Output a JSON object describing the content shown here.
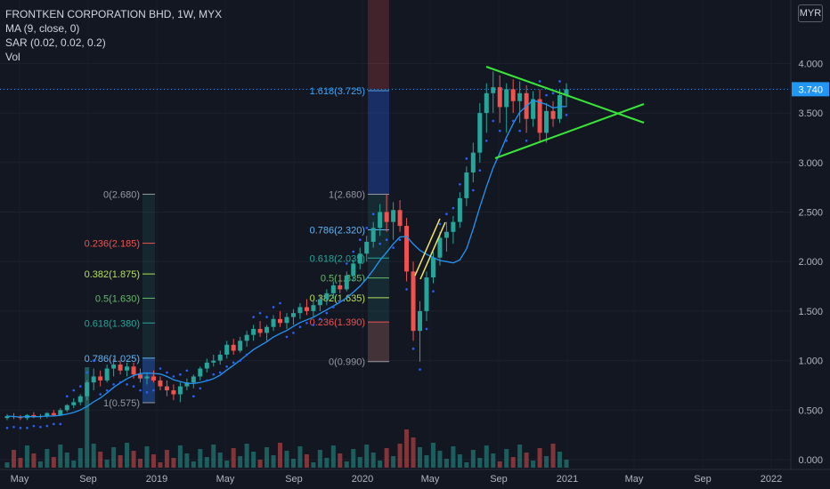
{
  "legend": {
    "symbol": "FRONTKEN CORPORATION BHD, 1W, MYX",
    "ma": "MA (9, close, 0)",
    "sar": "SAR (0.02, 0.02, 0.2)",
    "vol": "Vol"
  },
  "currency_button": "MYR",
  "colors": {
    "background": "#131722",
    "up": "#26a69a",
    "down": "#ef5350",
    "ma": "#2196f3",
    "sar": "#2962ff",
    "triangle": "#39e639",
    "price_label": "#2196f3"
  },
  "price_label": "3.740",
  "chart_data": {
    "type": "candlestick",
    "y_axis": {
      "ticks": [
        "4.000",
        "3.500",
        "3.000",
        "2.500",
        "2.000",
        "1.500",
        "1.000",
        "0.500",
        "0.000"
      ],
      "range": [
        0,
        4.3
      ]
    },
    "x_axis": {
      "ticks": [
        "May",
        "Sep",
        "2019",
        "May",
        "Sep",
        "2020",
        "May",
        "Sep",
        "2021",
        "May",
        "Sep",
        "2022"
      ]
    },
    "current_price": 3.74,
    "ohlc_weekly_approx": [
      [
        0.42,
        0.46,
        0.4,
        0.44
      ],
      [
        0.44,
        0.47,
        0.41,
        0.43
      ],
      [
        0.43,
        0.45,
        0.4,
        0.42
      ],
      [
        0.42,
        0.46,
        0.4,
        0.45
      ],
      [
        0.45,
        0.48,
        0.42,
        0.43
      ],
      [
        0.43,
        0.46,
        0.41,
        0.44
      ],
      [
        0.44,
        0.48,
        0.42,
        0.47
      ],
      [
        0.47,
        0.5,
        0.44,
        0.45
      ],
      [
        0.45,
        0.52,
        0.44,
        0.5
      ],
      [
        0.5,
        0.56,
        0.48,
        0.55
      ],
      [
        0.55,
        0.62,
        0.52,
        0.58
      ],
      [
        0.58,
        0.66,
        0.55,
        0.64
      ],
      [
        0.64,
        0.8,
        0.6,
        0.78
      ],
      [
        0.78,
        0.92,
        0.7,
        0.84
      ],
      [
        0.84,
        0.9,
        0.74,
        0.8
      ],
      [
        0.8,
        0.96,
        0.78,
        0.92
      ],
      [
        0.92,
        1.02,
        0.84,
        0.96
      ],
      [
        0.96,
        1.0,
        0.86,
        0.9
      ],
      [
        0.9,
        0.98,
        0.84,
        0.94
      ],
      [
        0.94,
        0.98,
        0.82,
        0.86
      ],
      [
        0.86,
        0.92,
        0.78,
        0.82
      ],
      [
        0.82,
        0.88,
        0.76,
        0.84
      ],
      [
        0.84,
        0.9,
        0.78,
        0.8
      ],
      [
        0.8,
        0.84,
        0.7,
        0.74
      ],
      [
        0.74,
        0.8,
        0.64,
        0.7
      ],
      [
        0.7,
        0.76,
        0.6,
        0.66
      ],
      [
        0.66,
        0.78,
        0.58,
        0.74
      ],
      [
        0.74,
        0.82,
        0.7,
        0.78
      ],
      [
        0.78,
        0.86,
        0.72,
        0.84
      ],
      [
        0.84,
        0.94,
        0.8,
        0.92
      ],
      [
        0.92,
        1.02,
        0.88,
        0.98
      ],
      [
        0.98,
        1.06,
        0.94,
        1.0
      ],
      [
        1.0,
        1.1,
        0.96,
        1.06
      ],
      [
        1.06,
        1.2,
        1.02,
        1.16
      ],
      [
        1.16,
        1.22,
        1.06,
        1.1
      ],
      [
        1.1,
        1.24,
        1.08,
        1.2
      ],
      [
        1.2,
        1.3,
        1.14,
        1.26
      ],
      [
        1.26,
        1.36,
        1.2,
        1.32
      ],
      [
        1.32,
        1.4,
        1.24,
        1.28
      ],
      [
        1.28,
        1.36,
        1.2,
        1.34
      ],
      [
        1.34,
        1.46,
        1.3,
        1.42
      ],
      [
        1.42,
        1.5,
        1.34,
        1.38
      ],
      [
        1.38,
        1.48,
        1.32,
        1.44
      ],
      [
        1.44,
        1.52,
        1.36,
        1.48
      ],
      [
        1.48,
        1.58,
        1.42,
        1.54
      ],
      [
        1.54,
        1.62,
        1.46,
        1.5
      ],
      [
        1.5,
        1.6,
        1.44,
        1.56
      ],
      [
        1.56,
        1.66,
        1.5,
        1.62
      ],
      [
        1.62,
        1.72,
        1.56,
        1.68
      ],
      [
        1.68,
        1.8,
        1.62,
        1.76
      ],
      [
        1.76,
        1.86,
        1.68,
        1.72
      ],
      [
        1.72,
        1.9,
        1.7,
        1.86
      ],
      [
        1.86,
        2.02,
        1.8,
        1.98
      ],
      [
        1.98,
        2.14,
        1.92,
        2.08
      ],
      [
        2.08,
        2.26,
        2.0,
        2.2
      ],
      [
        2.2,
        2.4,
        2.14,
        2.34
      ],
      [
        2.34,
        2.58,
        2.26,
        2.5
      ],
      [
        2.5,
        2.68,
        2.3,
        2.4
      ],
      [
        2.4,
        2.6,
        2.22,
        2.52
      ],
      [
        2.52,
        2.62,
        2.3,
        2.36
      ],
      [
        2.36,
        2.44,
        1.8,
        1.9
      ],
      [
        1.9,
        2.0,
        1.2,
        1.3
      ],
      [
        1.3,
        1.6,
        0.99,
        1.5
      ],
      [
        1.5,
        1.9,
        1.4,
        1.84
      ],
      [
        1.84,
        2.1,
        1.78,
        2.04
      ],
      [
        2.04,
        2.3,
        1.96,
        2.24
      ],
      [
        2.24,
        2.4,
        2.1,
        2.3
      ],
      [
        2.3,
        2.46,
        2.18,
        2.4
      ],
      [
        2.4,
        2.7,
        2.34,
        2.64
      ],
      [
        2.64,
        2.96,
        2.56,
        2.9
      ],
      [
        2.9,
        3.2,
        2.8,
        3.1
      ],
      [
        3.1,
        3.6,
        3.0,
        3.5
      ],
      [
        3.5,
        3.8,
        3.3,
        3.7
      ],
      [
        3.7,
        3.92,
        3.5,
        3.76
      ],
      [
        3.76,
        3.88,
        3.4,
        3.56
      ],
      [
        3.56,
        3.8,
        3.3,
        3.74
      ],
      [
        3.74,
        3.84,
        3.5,
        3.62
      ],
      [
        3.62,
        3.82,
        3.4,
        3.7
      ],
      [
        3.7,
        3.78,
        3.3,
        3.44
      ],
      [
        3.44,
        3.72,
        3.36,
        3.64
      ],
      [
        3.64,
        3.74,
        3.2,
        3.3
      ],
      [
        3.3,
        3.6,
        3.2,
        3.52
      ],
      [
        3.52,
        3.62,
        3.36,
        3.44
      ],
      [
        3.44,
        3.74,
        3.4,
        3.68
      ],
      [
        3.68,
        3.8,
        3.56,
        3.74
      ]
    ]
  },
  "fib_left": {
    "levels": [
      {
        "label": "0(2.680)",
        "value": 2.68,
        "color": "#9598a1"
      },
      {
        "label": "0.236(2.185)",
        "value": 2.185,
        "color": "#ef5350"
      },
      {
        "label": "0.382(1.875)",
        "value": 1.875,
        "color": "#b4e05a"
      },
      {
        "label": "0.5(1.630)",
        "value": 1.63,
        "color": "#66bb6a"
      },
      {
        "label": "0.618(1.380)",
        "value": 1.38,
        "color": "#26a69a"
      },
      {
        "label": "0.786(1.025)",
        "value": 1.025,
        "color": "#64b5f6"
      },
      {
        "label": "1(0.575)",
        "value": 0.575,
        "color": "#9598a1"
      }
    ]
  },
  "fib_right": {
    "levels": [
      {
        "label": "1.618(3.725)",
        "value": 3.725,
        "color": "#42a5f5"
      },
      {
        "label": "1(2.680)",
        "value": 2.68,
        "color": "#9598a1"
      },
      {
        "label": "0.786(2.320)",
        "value": 2.32,
        "color": "#64b5f6"
      },
      {
        "label": "0.618(2.035)",
        "value": 2.035,
        "color": "#26a69a"
      },
      {
        "label": "0.5(1.835)",
        "value": 1.835,
        "color": "#66bb6a"
      },
      {
        "label": "0.382(1.635)",
        "value": 1.635,
        "color": "#b4e05a"
      },
      {
        "label": "0.236(1.390)",
        "value": 1.39,
        "color": "#ef5350"
      },
      {
        "label": "0(0.990)",
        "value": 0.99,
        "color": "#9598a1"
      }
    ]
  }
}
